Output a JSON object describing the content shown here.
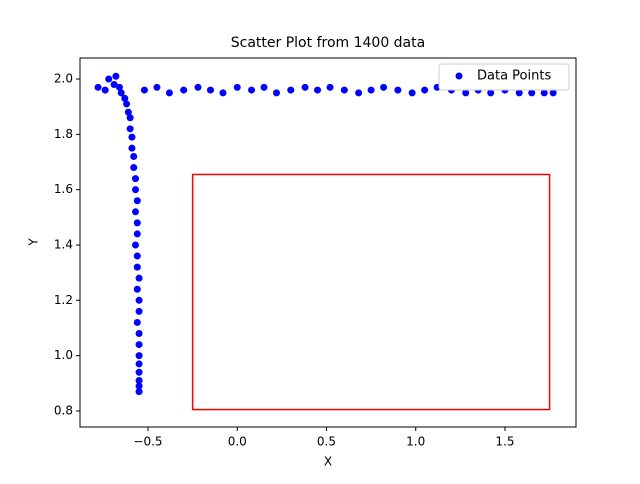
{
  "chart_data": {
    "type": "scatter",
    "title": "Scatter Plot from 1400 data",
    "x_label": "X",
    "y_label": "Y",
    "x": [
      -0.78,
      -0.74,
      -0.72,
      -0.69,
      -0.68,
      -0.66,
      -0.65,
      -0.63,
      -0.62,
      -0.61,
      -0.6,
      -0.6,
      -0.59,
      -0.59,
      -0.58,
      -0.58,
      -0.57,
      -0.57,
      -0.56,
      -0.57,
      -0.56,
      -0.56,
      -0.57,
      -0.56,
      -0.56,
      -0.55,
      -0.56,
      -0.55,
      -0.55,
      -0.56,
      -0.55,
      -0.55,
      -0.55,
      -0.55,
      -0.55,
      -0.55,
      -0.55,
      -0.55,
      -0.52,
      -0.45,
      -0.38,
      -0.3,
      -0.22,
      -0.15,
      -0.08,
      0.0,
      0.08,
      0.15,
      0.22,
      0.3,
      0.38,
      0.45,
      0.52,
      0.6,
      0.68,
      0.75,
      0.82,
      0.9,
      0.98,
      1.05,
      1.12,
      1.2,
      1.28,
      1.35,
      1.42,
      1.5,
      1.58,
      1.65,
      1.72,
      1.77
    ],
    "series": [
      {
        "name": "Data Points",
        "color": "blue",
        "values": [
          1.97,
          1.96,
          2.0,
          1.98,
          2.01,
          1.97,
          1.95,
          1.93,
          1.91,
          1.88,
          1.86,
          1.82,
          1.79,
          1.75,
          1.72,
          1.68,
          1.64,
          1.6,
          1.56,
          1.52,
          1.48,
          1.44,
          1.4,
          1.36,
          1.32,
          1.28,
          1.24,
          1.2,
          1.16,
          1.12,
          1.08,
          1.04,
          1.0,
          0.97,
          0.94,
          0.91,
          0.89,
          0.87,
          1.96,
          1.97,
          1.95,
          1.96,
          1.97,
          1.96,
          1.95,
          1.97,
          1.96,
          1.97,
          1.95,
          1.96,
          1.97,
          1.96,
          1.97,
          1.96,
          1.95,
          1.96,
          1.97,
          1.96,
          1.95,
          1.96,
          1.97,
          1.96,
          1.95,
          1.96,
          1.95,
          1.96,
          1.95,
          1.95,
          1.95,
          1.95
        ]
      }
    ],
    "xlim": [
      -0.881,
      1.898
    ],
    "ylim": [
      0.742,
      2.076
    ],
    "xticks": [
      {
        "value": -0.5,
        "label": "−0.5"
      },
      {
        "value": 0,
        "label": "0.0"
      },
      0.5,
      {
        "value": 1,
        "label": "1.0"
      },
      1.5
    ],
    "yticks": [
      0.8,
      {
        "value": 1,
        "label": "1.0"
      },
      1.2,
      1.4,
      1.6,
      1.8,
      {
        "value": 2,
        "label": "2.0"
      }
    ],
    "legend": "upper right",
    "box": {
      "x0": -0.25,
      "x1": 1.75,
      "y0": 0.805,
      "y1": 1.655,
      "color": "red"
    }
  }
}
